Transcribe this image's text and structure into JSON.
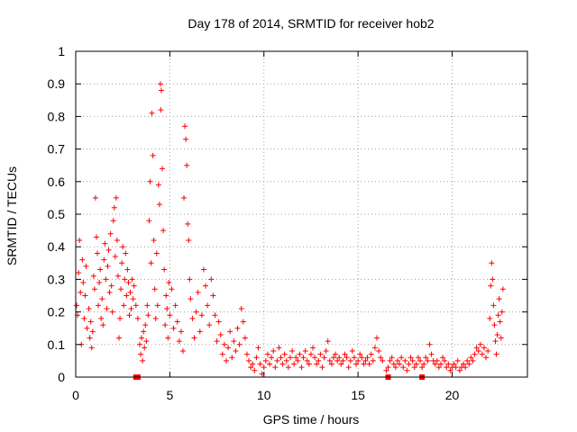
{
  "chart_data": {
    "type": "scatter",
    "title": "Day 178 of 2014, SRMTID for receiver hob2",
    "xlabel": "GPS time / hours",
    "ylabel": "SRMTID / TECUs",
    "xlim": [
      0,
      24
    ],
    "ylim": [
      0,
      1
    ],
    "x_ticks": [
      0,
      5,
      10,
      15,
      20
    ],
    "x_tick_labels": [
      "0",
      "5",
      "10",
      "15",
      "20"
    ],
    "y_ticks": [
      0,
      0.1,
      0.2,
      0.3,
      0.4,
      0.5,
      0.6,
      0.7,
      0.8,
      0.9,
      1
    ],
    "y_tick_labels": [
      "0",
      "0.1",
      "0.2",
      "0.3",
      "0.4",
      "0.5",
      "0.6",
      "0.7",
      "0.8",
      "0.9",
      "1"
    ],
    "grid": true,
    "marker": "+",
    "color": "#ff0000",
    "series": [
      {
        "name": "SRMTID",
        "points": [
          [
            0.05,
            0.22
          ],
          [
            0.1,
            0.19
          ],
          [
            0.15,
            0.32
          ],
          [
            0.2,
            0.42
          ],
          [
            0.25,
            0.26
          ],
          [
            0.3,
            0.1
          ],
          [
            0.35,
            0.36
          ],
          [
            0.4,
            0.29
          ],
          [
            0.45,
            0.18
          ],
          [
            0.5,
            0.25
          ],
          [
            0.55,
            0.34
          ],
          [
            0.6,
            0.15
          ],
          [
            0.7,
            0.21
          ],
          [
            0.75,
            0.12
          ],
          [
            0.8,
            0.17
          ],
          [
            0.85,
            0.09
          ],
          [
            0.9,
            0.14
          ],
          [
            0.95,
            0.31
          ],
          [
            1.0,
            0.27
          ],
          [
            1.05,
            0.55
          ],
          [
            1.1,
            0.43
          ],
          [
            1.15,
            0.38
          ],
          [
            1.2,
            0.22
          ],
          [
            1.25,
            0.29
          ],
          [
            1.3,
            0.33
          ],
          [
            1.35,
            0.18
          ],
          [
            1.4,
            0.24
          ],
          [
            1.45,
            0.16
          ],
          [
            1.5,
            0.36
          ],
          [
            1.55,
            0.41
          ],
          [
            1.6,
            0.3
          ],
          [
            1.65,
            0.21
          ],
          [
            1.7,
            0.34
          ],
          [
            1.75,
            0.39
          ],
          [
            1.8,
            0.26
          ],
          [
            1.85,
            0.44
          ],
          [
            1.9,
            0.28
          ],
          [
            1.95,
            0.2
          ],
          [
            2.0,
            0.48
          ],
          [
            2.05,
            0.52
          ],
          [
            2.1,
            0.37
          ],
          [
            2.15,
            0.55
          ],
          [
            2.2,
            0.42
          ],
          [
            2.25,
            0.31
          ],
          [
            2.3,
            0.12
          ],
          [
            2.35,
            0.18
          ],
          [
            2.4,
            0.27
          ],
          [
            2.45,
            0.35
          ],
          [
            2.5,
            0.4
          ],
          [
            2.55,
            0.22
          ],
          [
            2.6,
            0.3
          ],
          [
            2.65,
            0.38
          ],
          [
            2.7,
            0.25
          ],
          [
            2.75,
            0.33
          ],
          [
            2.8,
            0.29
          ],
          [
            2.85,
            0.19
          ],
          [
            2.9,
            0.26
          ],
          [
            2.95,
            0.21
          ],
          [
            3.0,
            0.3
          ],
          [
            3.05,
            0.24
          ],
          [
            3.1,
            0.28
          ],
          [
            3.2,
            0.22
          ],
          [
            3.3,
            0.18
          ],
          [
            3.4,
            0.1
          ],
          [
            3.45,
            0.07
          ],
          [
            3.5,
            0.12
          ],
          [
            3.55,
            0.05
          ],
          [
            3.6,
            0.14
          ],
          [
            3.65,
            0.09
          ],
          [
            3.7,
            0.16
          ],
          [
            3.75,
            0.11
          ],
          [
            3.8,
            0.22
          ],
          [
            3.85,
            0.19
          ],
          [
            3.9,
            0.48
          ],
          [
            3.95,
            0.6
          ],
          [
            4.0,
            0.35
          ],
          [
            4.05,
            0.81
          ],
          [
            4.1,
            0.68
          ],
          [
            4.15,
            0.42
          ],
          [
            4.2,
            0.27
          ],
          [
            4.25,
            0.18
          ],
          [
            4.3,
            0.38
          ],
          [
            4.35,
            0.22
          ],
          [
            4.4,
            0.59
          ],
          [
            4.45,
            0.53
          ],
          [
            4.5,
            0.9
          ],
          [
            4.52,
            0.82
          ],
          [
            4.55,
            0.88
          ],
          [
            4.6,
            0.64
          ],
          [
            4.65,
            0.45
          ],
          [
            4.7,
            0.33
          ],
          [
            4.75,
            0.16
          ],
          [
            4.8,
            0.25
          ],
          [
            4.85,
            0.21
          ],
          [
            4.9,
            0.12
          ],
          [
            4.95,
            0.29
          ],
          [
            5.0,
            0.19
          ],
          [
            5.1,
            0.27
          ],
          [
            5.2,
            0.15
          ],
          [
            5.3,
            0.22
          ],
          [
            5.4,
            0.17
          ],
          [
            5.5,
            0.11
          ],
          [
            5.6,
            0.14
          ],
          [
            5.7,
            0.08
          ],
          [
            5.75,
            0.55
          ],
          [
            5.8,
            0.77
          ],
          [
            5.85,
            0.73
          ],
          [
            5.9,
            0.65
          ],
          [
            5.95,
            0.47
          ],
          [
            6.0,
            0.42
          ],
          [
            6.05,
            0.3
          ],
          [
            6.1,
            0.24
          ],
          [
            6.2,
            0.18
          ],
          [
            6.3,
            0.12
          ],
          [
            6.4,
            0.2
          ],
          [
            6.5,
            0.26
          ],
          [
            6.6,
            0.14
          ],
          [
            6.7,
            0.19
          ],
          [
            6.8,
            0.33
          ],
          [
            6.9,
            0.28
          ],
          [
            7.0,
            0.22
          ],
          [
            7.1,
            0.16
          ],
          [
            7.2,
            0.3
          ],
          [
            7.3,
            0.25
          ],
          [
            7.4,
            0.19
          ],
          [
            7.5,
            0.11
          ],
          [
            7.6,
            0.17
          ],
          [
            7.7,
            0.13
          ],
          [
            7.8,
            0.07
          ],
          [
            7.9,
            0.1
          ],
          [
            8.0,
            0.05
          ],
          [
            8.1,
            0.09
          ],
          [
            8.2,
            0.14
          ],
          [
            8.3,
            0.06
          ],
          [
            8.4,
            0.11
          ],
          [
            8.5,
            0.08
          ],
          [
            8.6,
            0.15
          ],
          [
            8.7,
            0.1
          ],
          [
            8.8,
            0.21
          ],
          [
            8.9,
            0.17
          ],
          [
            9.0,
            0.12
          ],
          [
            9.1,
            0.07
          ],
          [
            9.2,
            0.05
          ],
          [
            9.3,
            0.03
          ],
          [
            9.4,
            0.04
          ],
          [
            9.5,
            0.02
          ],
          [
            9.6,
            0.06
          ],
          [
            9.7,
            0.09
          ],
          [
            9.8,
            0.04
          ],
          [
            9.9,
            0.01
          ],
          [
            10.0,
            0.03
          ],
          [
            10.1,
            0.05
          ],
          [
            10.2,
            0.07
          ],
          [
            10.3,
            0.04
          ],
          [
            10.4,
            0.06
          ],
          [
            10.5,
            0.08
          ],
          [
            10.6,
            0.03
          ],
          [
            10.7,
            0.05
          ],
          [
            10.8,
            0.09
          ],
          [
            10.9,
            0.06
          ],
          [
            11.0,
            0.04
          ],
          [
            11.1,
            0.07
          ],
          [
            11.2,
            0.05
          ],
          [
            11.3,
            0.03
          ],
          [
            11.4,
            0.06
          ],
          [
            11.5,
            0.08
          ],
          [
            11.6,
            0.04
          ],
          [
            11.7,
            0.06
          ],
          [
            11.8,
            0.05
          ],
          [
            11.9,
            0.07
          ],
          [
            12.0,
            0.03
          ],
          [
            12.1,
            0.06
          ],
          [
            12.2,
            0.08
          ],
          [
            12.3,
            0.05
          ],
          [
            12.4,
            0.04
          ],
          [
            12.5,
            0.07
          ],
          [
            12.6,
            0.09
          ],
          [
            12.7,
            0.06
          ],
          [
            12.8,
            0.04
          ],
          [
            12.9,
            0.05
          ],
          [
            13.0,
            0.07
          ],
          [
            13.1,
            0.03
          ],
          [
            13.2,
            0.06
          ],
          [
            13.3,
            0.08
          ],
          [
            13.4,
            0.11
          ],
          [
            13.5,
            0.05
          ],
          [
            13.6,
            0.04
          ],
          [
            13.7,
            0.06
          ],
          [
            13.8,
            0.07
          ],
          [
            13.9,
            0.05
          ],
          [
            14.0,
            0.06
          ],
          [
            14.1,
            0.04
          ],
          [
            14.2,
            0.05
          ],
          [
            14.3,
            0.07
          ],
          [
            14.4,
            0.06
          ],
          [
            14.5,
            0.03
          ],
          [
            14.6,
            0.05
          ],
          [
            14.7,
            0.08
          ],
          [
            14.8,
            0.06
          ],
          [
            14.9,
            0.04
          ],
          [
            15.0,
            0.05
          ],
          [
            15.1,
            0.07
          ],
          [
            15.2,
            0.06
          ],
          [
            15.3,
            0.04
          ],
          [
            15.4,
            0.05
          ],
          [
            15.5,
            0.06
          ],
          [
            15.6,
            0.04
          ],
          [
            15.7,
            0.07
          ],
          [
            15.8,
            0.05
          ],
          [
            15.9,
            0.09
          ],
          [
            16.0,
            0.12
          ],
          [
            16.1,
            0.08
          ],
          [
            16.2,
            0.06
          ],
          [
            16.3,
            0.05
          ],
          [
            16.5,
            0.02
          ],
          [
            16.6,
            0.03
          ],
          [
            16.7,
            0.05
          ],
          [
            16.8,
            0.06
          ],
          [
            16.9,
            0.04
          ],
          [
            17.0,
            0.03
          ],
          [
            17.1,
            0.05
          ],
          [
            17.2,
            0.04
          ],
          [
            17.3,
            0.06
          ],
          [
            17.4,
            0.03
          ],
          [
            17.5,
            0.05
          ],
          [
            17.6,
            0.02
          ],
          [
            17.7,
            0.04
          ],
          [
            17.8,
            0.06
          ],
          [
            17.9,
            0.05
          ],
          [
            18.0,
            0.03
          ],
          [
            18.1,
            0.04
          ],
          [
            18.2,
            0.06
          ],
          [
            18.3,
            0.05
          ],
          [
            18.4,
            0.03
          ],
          [
            18.5,
            0.04
          ],
          [
            18.6,
            0.06
          ],
          [
            18.7,
            0.05
          ],
          [
            18.8,
            0.1
          ],
          [
            18.9,
            0.07
          ],
          [
            19.0,
            0.05
          ],
          [
            19.1,
            0.04
          ],
          [
            19.2,
            0.05
          ],
          [
            19.3,
            0.03
          ],
          [
            19.4,
            0.04
          ],
          [
            19.5,
            0.06
          ],
          [
            19.6,
            0.05
          ],
          [
            19.7,
            0.03
          ],
          [
            19.8,
            0.04
          ],
          [
            19.9,
            0.02
          ],
          [
            20.0,
            0.03
          ],
          [
            20.1,
            0.04
          ],
          [
            20.2,
            0.03
          ],
          [
            20.3,
            0.05
          ],
          [
            20.4,
            0.02
          ],
          [
            20.5,
            0.03
          ],
          [
            20.6,
            0.04
          ],
          [
            20.7,
            0.03
          ],
          [
            20.8,
            0.05
          ],
          [
            20.9,
            0.04
          ],
          [
            21.0,
            0.06
          ],
          [
            21.1,
            0.05
          ],
          [
            21.2,
            0.07
          ],
          [
            21.3,
            0.09
          ],
          [
            21.4,
            0.08
          ],
          [
            21.5,
            0.1
          ],
          [
            21.6,
            0.07
          ],
          [
            21.7,
            0.09
          ],
          [
            21.8,
            0.06
          ],
          [
            21.9,
            0.08
          ],
          [
            22.0,
            0.18
          ],
          [
            22.05,
            0.28
          ],
          [
            22.1,
            0.35
          ],
          [
            22.15,
            0.3
          ],
          [
            22.2,
            0.22
          ],
          [
            22.25,
            0.16
          ],
          [
            22.3,
            0.11
          ],
          [
            22.35,
            0.07
          ],
          [
            22.4,
            0.13
          ],
          [
            22.45,
            0.19
          ],
          [
            22.5,
            0.24
          ],
          [
            22.55,
            0.17
          ],
          [
            22.6,
            0.12
          ],
          [
            22.65,
            0.2
          ],
          [
            22.7,
            0.27
          ]
        ]
      },
      {
        "name": "baseline markers",
        "marker": "square",
        "points": [
          [
            3.2,
            0.0
          ],
          [
            3.3,
            0.0
          ],
          [
            16.6,
            0.0
          ],
          [
            18.4,
            0.0
          ]
        ]
      }
    ]
  }
}
